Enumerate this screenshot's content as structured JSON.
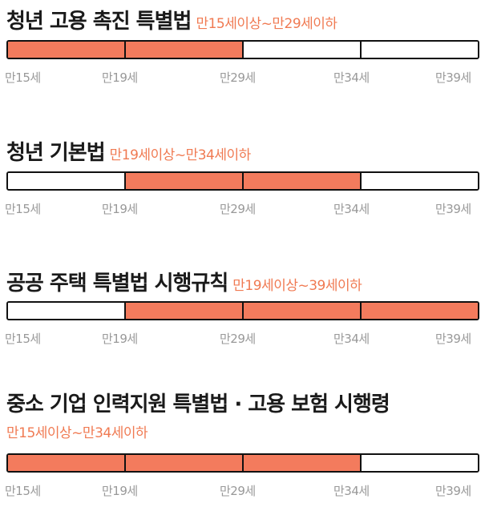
{
  "ticks": [
    "만15세",
    "만19세",
    "만29세",
    "만34세",
    "만39세"
  ],
  "sections": [
    {
      "law": "청년 고용 촉진 특별법",
      "age_range": "만15세이상~만29세이하",
      "segments_filled": [
        true,
        true,
        false,
        false
      ]
    },
    {
      "law": "청년 기본법",
      "age_range": "만19세이상~만34세이하",
      "segments_filled": [
        false,
        true,
        true,
        false
      ]
    },
    {
      "law": "공공 주택 특별법 시행규칙",
      "age_range": "만19세이상~39세이하",
      "segments_filled": [
        false,
        true,
        true,
        true
      ]
    },
    {
      "law": "중소 기업 인력지원 특별법 · 고용 보험 시행령",
      "age_range": "만15세이상~만34세이하",
      "segments_filled": [
        true,
        true,
        true,
        false
      ]
    }
  ],
  "colors": {
    "filled": "#f37b5d",
    "accent_text": "#f07a52",
    "border": "#111111",
    "tick_text": "#999999"
  }
}
